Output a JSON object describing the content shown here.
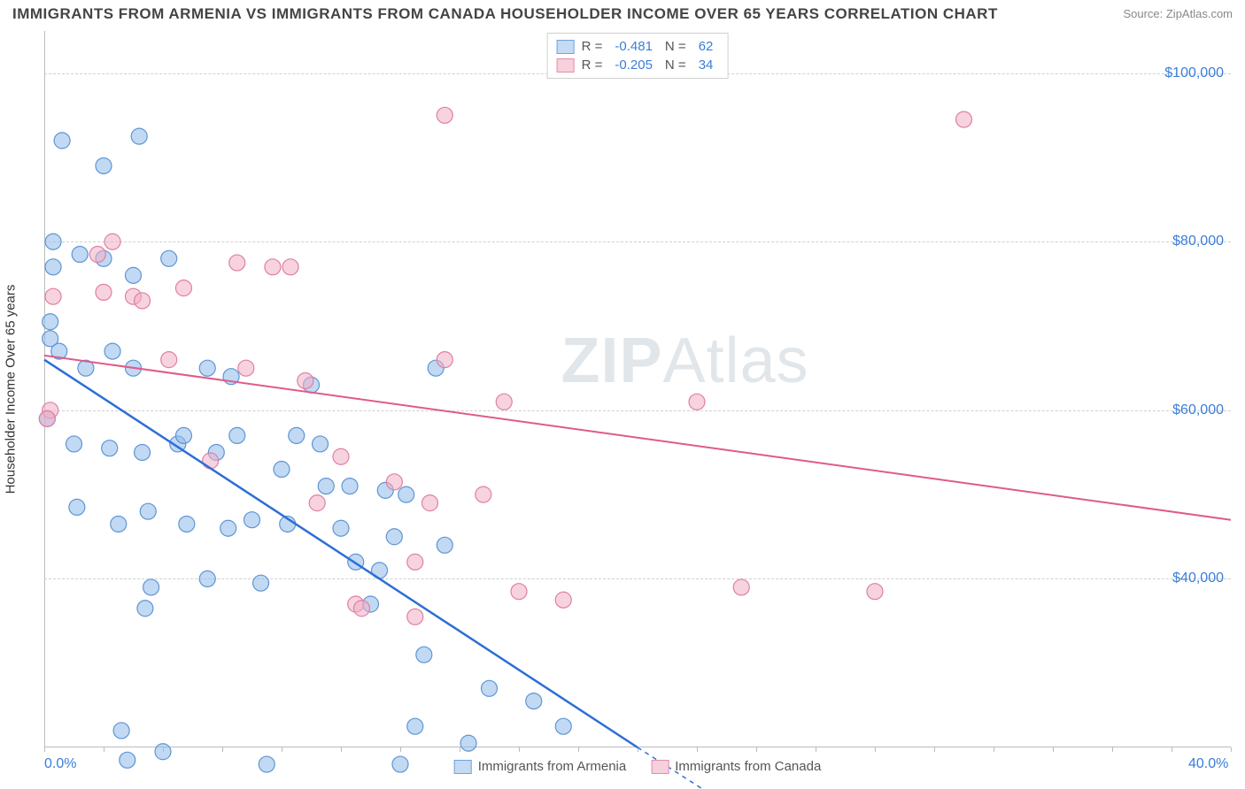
{
  "title": "IMMIGRANTS FROM ARMENIA VS IMMIGRANTS FROM CANADA HOUSEHOLDER INCOME OVER 65 YEARS CORRELATION CHART",
  "source": "Source: ZipAtlas.com",
  "watermark_zip": "ZIP",
  "watermark_atlas": "Atlas",
  "y_axis_label": "Householder Income Over 65 years",
  "chart": {
    "type": "scatter",
    "xlim": [
      0,
      40
    ],
    "ylim": [
      20000,
      105000
    ],
    "x_ticks_minor_step": 2,
    "x_tick_labels": [
      {
        "x": 0,
        "label": "0.0%"
      },
      {
        "x": 40,
        "label": "40.0%"
      }
    ],
    "y_gridlines": [
      40000,
      60000,
      80000,
      100000
    ],
    "y_tick_labels": [
      {
        "y": 40000,
        "label": "$40,000"
      },
      {
        "y": 60000,
        "label": "$60,000"
      },
      {
        "y": 80000,
        "label": "$80,000"
      },
      {
        "y": 100000,
        "label": "$100,000"
      }
    ],
    "grid_color": "#d0d0d0",
    "background_color": "#ffffff"
  },
  "legend_top": [
    {
      "swatch_fill": "#c5daf3",
      "swatch_stroke": "#6fa3e0",
      "r_label": "R =",
      "r_value": "-0.481",
      "n_label": "N =",
      "n_value": "62"
    },
    {
      "swatch_fill": "#f6d0da",
      "swatch_stroke": "#e38fab",
      "r_label": "R =",
      "r_value": "-0.205",
      "n_label": "N =",
      "n_value": "34"
    }
  ],
  "legend_bottom": [
    {
      "swatch_fill": "#c5daf3",
      "swatch_stroke": "#6fa3e0",
      "label": "Immigrants from Armenia"
    },
    {
      "swatch_fill": "#f6d0da",
      "swatch_stroke": "#e38fab",
      "label": "Immigrants from Canada"
    }
  ],
  "series": [
    {
      "name": "armenia",
      "marker_fill": "rgba(142,186,233,0.55)",
      "marker_stroke": "#5f95d4",
      "marker_radius": 9,
      "trend_color": "#2c6fd6",
      "trend_width": 2.5,
      "trend": {
        "x1": 0,
        "y1": 66000,
        "x2": 20,
        "y2": 20000
      },
      "extrapolate": {
        "x1": 20,
        "y1": 20000,
        "x2": 24,
        "y2": 11000
      },
      "points": [
        [
          0.3,
          80000
        ],
        [
          0.3,
          77000
        ],
        [
          0.2,
          70500
        ],
        [
          0.2,
          68500
        ],
        [
          0.5,
          67000
        ],
        [
          0.1,
          59000
        ],
        [
          0.6,
          92000
        ],
        [
          1.1,
          48500
        ],
        [
          1.0,
          56000
        ],
        [
          1.2,
          78500
        ],
        [
          1.4,
          65000
        ],
        [
          2.0,
          89000
        ],
        [
          2.0,
          78000
        ],
        [
          2.3,
          67000
        ],
        [
          2.2,
          55500
        ],
        [
          2.5,
          46500
        ],
        [
          2.6,
          22000
        ],
        [
          3.0,
          76000
        ],
        [
          3.2,
          92500
        ],
        [
          3.0,
          65000
        ],
        [
          3.3,
          55000
        ],
        [
          3.5,
          48000
        ],
        [
          3.6,
          39000
        ],
        [
          3.4,
          36500
        ],
        [
          4.2,
          78000
        ],
        [
          4.5,
          56000
        ],
        [
          4.7,
          57000
        ],
        [
          4.8,
          46500
        ],
        [
          5.5,
          65000
        ],
        [
          5.5,
          40000
        ],
        [
          5.8,
          55000
        ],
        [
          6.3,
          64000
        ],
        [
          6.2,
          46000
        ],
        [
          6.5,
          57000
        ],
        [
          7.0,
          47000
        ],
        [
          7.3,
          39500
        ],
        [
          8.0,
          53000
        ],
        [
          8.2,
          46500
        ],
        [
          8.5,
          57000
        ],
        [
          9.0,
          63000
        ],
        [
          9.3,
          56000
        ],
        [
          9.5,
          51000
        ],
        [
          10.0,
          46000
        ],
        [
          10.3,
          51000
        ],
        [
          10.5,
          42000
        ],
        [
          11.0,
          37000
        ],
        [
          11.3,
          41000
        ],
        [
          11.5,
          50500
        ],
        [
          11.8,
          45000
        ],
        [
          12.2,
          50000
        ],
        [
          12.5,
          22500
        ],
        [
          12.8,
          31000
        ],
        [
          13.2,
          65000
        ],
        [
          13.5,
          44000
        ],
        [
          14.3,
          20500
        ],
        [
          15.0,
          27000
        ],
        [
          16.5,
          25500
        ],
        [
          17.5,
          22500
        ],
        [
          12.0,
          18000
        ],
        [
          7.5,
          18000
        ],
        [
          2.8,
          18500
        ],
        [
          4.0,
          19500
        ]
      ]
    },
    {
      "name": "canada",
      "marker_fill": "rgba(241,174,196,0.55)",
      "marker_stroke": "#e07fa3",
      "marker_radius": 9,
      "trend_color": "#e05a8a",
      "trend_width": 2,
      "trend": {
        "x1": 0,
        "y1": 66500,
        "x2": 40,
        "y2": 47000
      },
      "points": [
        [
          0.3,
          73500
        ],
        [
          0.2,
          60000
        ],
        [
          0.1,
          59000
        ],
        [
          1.8,
          78500
        ],
        [
          2.0,
          74000
        ],
        [
          2.3,
          80000
        ],
        [
          3.0,
          73500
        ],
        [
          3.3,
          73000
        ],
        [
          4.2,
          66000
        ],
        [
          4.7,
          74500
        ],
        [
          5.6,
          54000
        ],
        [
          6.5,
          77500
        ],
        [
          6.8,
          65000
        ],
        [
          7.7,
          77000
        ],
        [
          8.3,
          77000
        ],
        [
          8.8,
          63500
        ],
        [
          9.2,
          49000
        ],
        [
          10.0,
          54500
        ],
        [
          10.5,
          37000
        ],
        [
          10.7,
          36500
        ],
        [
          11.8,
          51500
        ],
        [
          12.5,
          35500
        ],
        [
          12.5,
          42000
        ],
        [
          13.5,
          95000
        ],
        [
          13.5,
          66000
        ],
        [
          14.8,
          50000
        ],
        [
          15.5,
          61000
        ],
        [
          16.0,
          38500
        ],
        [
          17.5,
          37500
        ],
        [
          22.0,
          61000
        ],
        [
          23.5,
          39000
        ],
        [
          28.0,
          38500
        ],
        [
          31.0,
          94500
        ],
        [
          13.0,
          49000
        ]
      ]
    }
  ]
}
